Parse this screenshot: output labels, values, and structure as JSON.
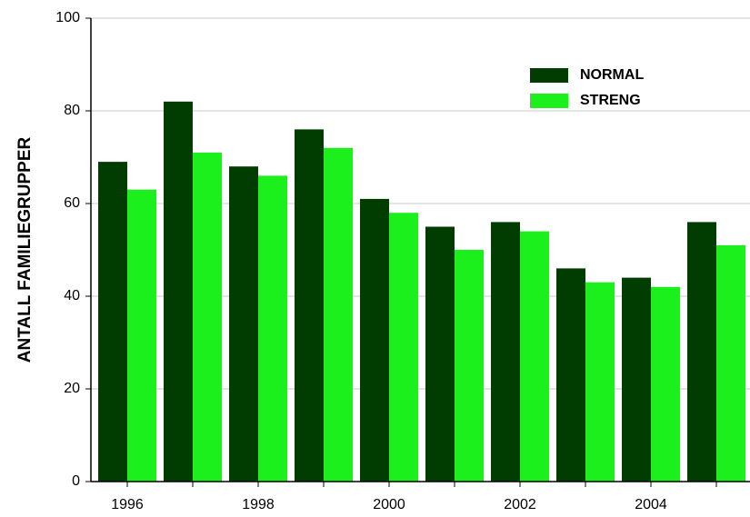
{
  "chart_data": {
    "type": "bar",
    "y_label": "ANTALL FAMILIEGRUPPER",
    "categories": [
      "1996",
      null,
      "1998",
      null,
      "2000",
      null,
      "2002",
      null,
      "2004",
      null
    ],
    "series": [
      {
        "name": "NORMAL",
        "color": "#013d01",
        "values": [
          69,
          82,
          68,
          76,
          61,
          55,
          56,
          46,
          44,
          56
        ]
      },
      {
        "name": "STRENG",
        "color": "#1cf01c",
        "values": [
          63,
          71,
          66,
          72,
          58,
          50,
          54,
          43,
          42,
          51
        ]
      }
    ],
    "ylim": [
      0,
      100
    ],
    "yticks": [
      0,
      20,
      40,
      60,
      80,
      100
    ],
    "grid": true,
    "legend": "upper right"
  }
}
